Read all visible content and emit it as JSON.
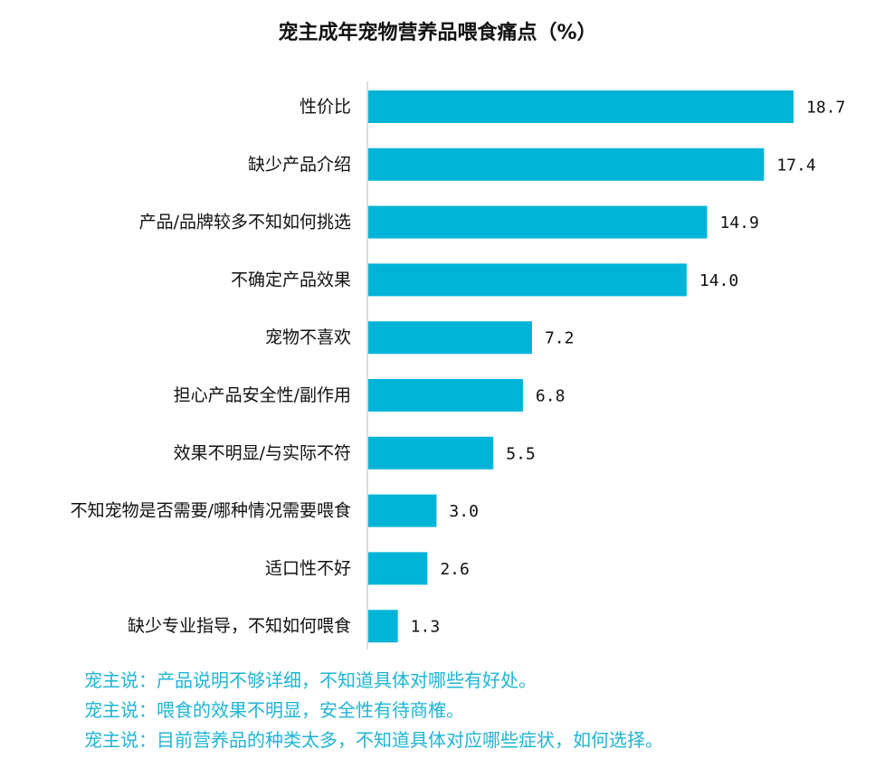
{
  "colors": {
    "bar": "#00b4d8",
    "axis": "#d0d0d0",
    "quote": "#1fb5d6"
  },
  "chart_data": {
    "type": "bar",
    "orientation": "horizontal",
    "title": "宠主成年宠物营养品喂食痛点（%）",
    "categories": [
      "性价比",
      "缺少产品介绍",
      "产品/品牌较多不知如何挑选",
      "不确定产品效果",
      "宠物不喜欢",
      "担心产品安全性/副作用",
      "效果不明显/与实际不符",
      "不知宠物是否需要/哪种情况需要喂食",
      "适口性不好",
      "缺少专业指导，不知如何喂食"
    ],
    "values": [
      18.7,
      17.4,
      14.9,
      14.0,
      7.2,
      6.8,
      5.5,
      3.0,
      2.6,
      1.3
    ],
    "value_labels": [
      "18.7",
      "17.4",
      "14.9",
      "14.0",
      "7.2",
      "6.8",
      "5.5",
      "3.0",
      "2.6",
      "1.3"
    ],
    "xlim": [
      0,
      18.7
    ],
    "grid": false,
    "legend": "none"
  },
  "quotes": [
    "宠主说：产品说明不够详细，不知道具体对哪些有好处。",
    "宠主说：喂食的效果不明显，安全性有待商榷。",
    "宠主说：目前营养品的种类太多，不知道具体对应哪些症状，如何选择。"
  ]
}
